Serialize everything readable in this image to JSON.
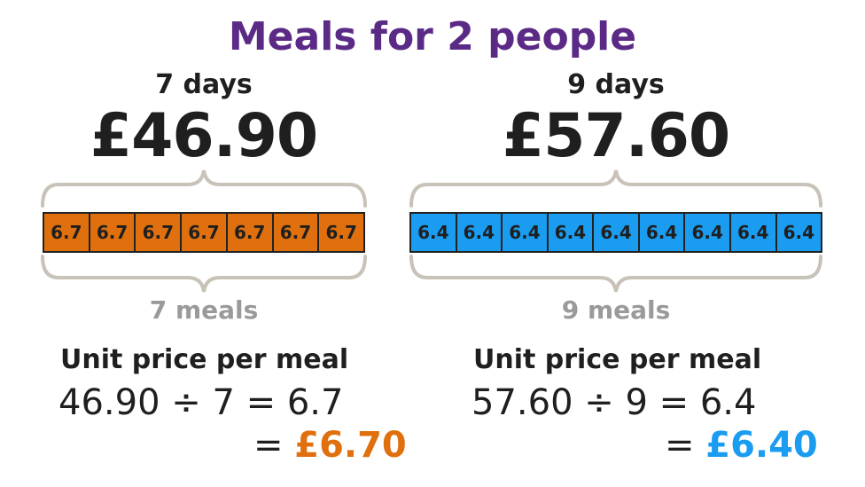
{
  "title": "Meals for 2 people",
  "colors": {
    "title": "#5b2a86",
    "orange": "#e0700d",
    "blue": "#1a9cf0",
    "grey": "#9a9a9a",
    "brace": "#c9c2b8"
  },
  "left": {
    "days_label": "7 days",
    "total_price": "£46.90",
    "cell_value": "6.7",
    "cell_count": 7,
    "meals_label": "7 meals",
    "unit_label": "Unit price per meal",
    "calculation": "46.90 ÷ 7 = 6.7",
    "equals": "=",
    "result": "£6.70"
  },
  "right": {
    "days_label": "9 days",
    "total_price": "£57.60",
    "cell_value": "6.4",
    "cell_count": 9,
    "meals_label": "9 meals",
    "unit_label": "Unit price per meal",
    "calculation": "57.60 ÷ 9 = 6.4",
    "equals": "=",
    "result": "£6.40"
  }
}
